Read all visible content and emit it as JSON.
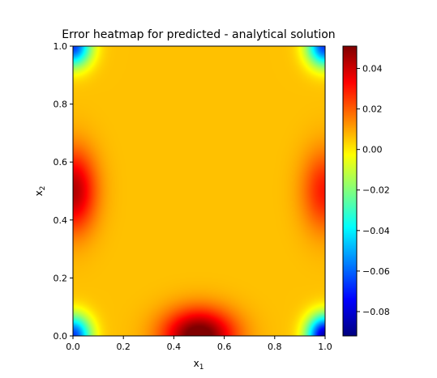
{
  "chart_data": {
    "type": "heatmap",
    "title": "Error heatmap for predicted - analytical solution",
    "xlabel": "x",
    "xlabel_sub": "1",
    "ylabel": "x",
    "ylabel_sub": "2",
    "xlim": [
      0.0,
      1.0
    ],
    "ylim": [
      0.0,
      1.0
    ],
    "x_ticks": [
      0.0,
      0.2,
      0.4,
      0.6,
      0.8,
      1.0
    ],
    "x_tick_labels": [
      "0.0",
      "0.2",
      "0.4",
      "0.6",
      "0.8",
      "1.0"
    ],
    "y_ticks": [
      0.0,
      0.2,
      0.4,
      0.6,
      0.8,
      1.0
    ],
    "y_tick_labels": [
      "0.0",
      "0.2",
      "0.4",
      "0.6",
      "0.8",
      "1.0"
    ],
    "colormap": "jet",
    "color_range": [
      -0.092,
      0.051
    ],
    "colorbar_ticks": [
      0.04,
      0.02,
      0.0,
      -0.02,
      -0.04,
      -0.06,
      -0.08
    ],
    "colorbar_tick_labels": [
      "0.04",
      "0.02",
      "0.00",
      "−0.02",
      "−0.04",
      "−0.06",
      "−0.08"
    ],
    "grid": false,
    "features": [
      {
        "x": 0.5,
        "y": 0.0,
        "value": 0.051,
        "spread": [
          0.14,
          0.09
        ]
      },
      {
        "x": 0.0,
        "y": 0.5,
        "value": 0.038,
        "spread": [
          0.09,
          0.14
        ]
      },
      {
        "x": 1.0,
        "y": 0.5,
        "value": 0.024,
        "spread": [
          0.09,
          0.14
        ]
      },
      {
        "x": 0.0,
        "y": 0.0,
        "value": -0.072,
        "spread": [
          0.07,
          0.07
        ]
      },
      {
        "x": 1.0,
        "y": 0.0,
        "value": -0.092,
        "spread": [
          0.07,
          0.07
        ]
      },
      {
        "x": 0.0,
        "y": 1.0,
        "value": -0.072,
        "spread": [
          0.07,
          0.07
        ]
      },
      {
        "x": 1.0,
        "y": 1.0,
        "value": -0.072,
        "spread": [
          0.07,
          0.07
        ]
      },
      {
        "x": 0.5,
        "y": 1.0,
        "value": 0.0,
        "spread": [
          0.2,
          0.2
        ]
      }
    ]
  }
}
